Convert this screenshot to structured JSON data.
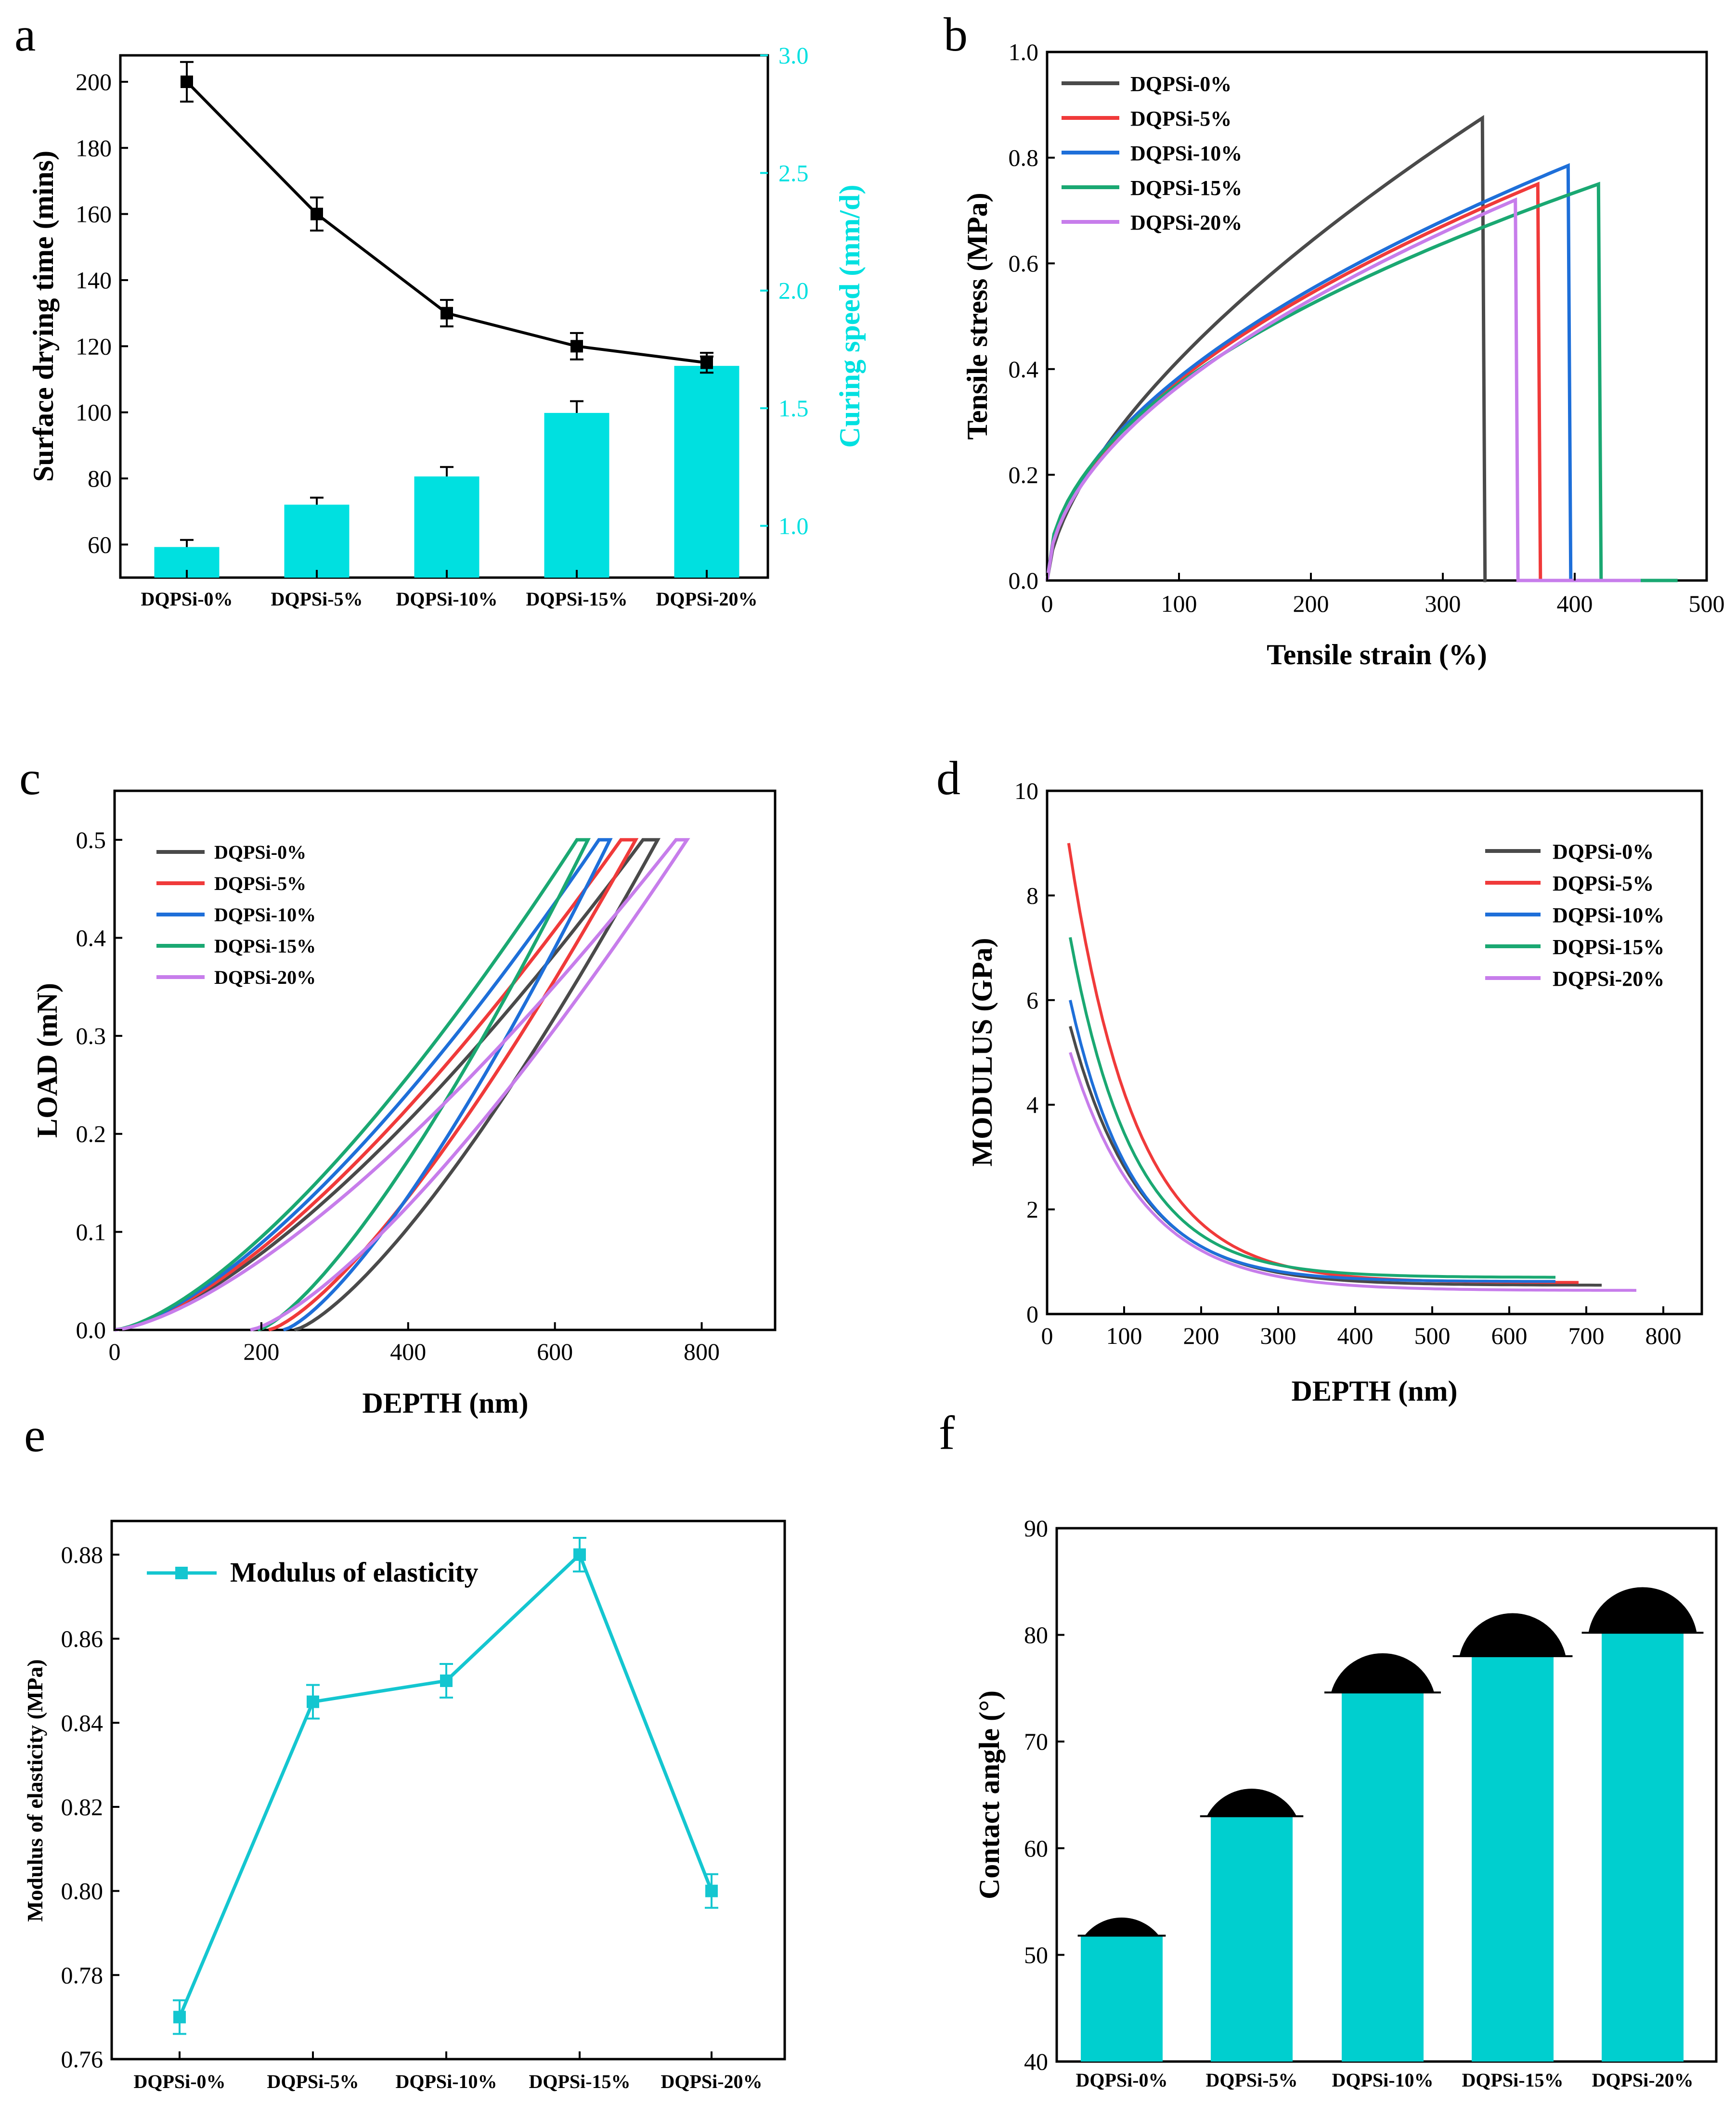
{
  "figure": {
    "colors": {
      "cyan": "#00E0E0",
      "cyan_line": "#14C6D0",
      "cyan_bar_f": "#00CFCF",
      "series": [
        "#4A4A4A",
        "#F03A3A",
        "#1E6FD9",
        "#1AA872",
        "#C77DEB"
      ]
    }
  },
  "chart_data": [
    {
      "panel": "a",
      "type": "bar+line",
      "categories": [
        "DQPSi-0%",
        "DQPSi-5%",
        "DQPSi-10%",
        "DQPSi-15%",
        "DQPSi-20%"
      ],
      "line_series": {
        "name": "Surface drying time (mins)",
        "values": [
          200,
          160,
          130,
          120,
          115
        ],
        "errors": [
          6,
          5,
          4,
          4,
          3
        ]
      },
      "bar_series": {
        "name": "Curing speed (mm/d)",
        "values": [
          0.91,
          1.09,
          1.21,
          1.48,
          1.68
        ],
        "errors": [
          0.03,
          0.03,
          0.04,
          0.05,
          0.04
        ]
      },
      "ylabel": "Surface drying time (mins)",
      "ylabel_right": "Curing speed (mm/d)",
      "ylim": [
        50,
        208
      ],
      "yticks": [
        60,
        80,
        100,
        120,
        140,
        160,
        180,
        200
      ],
      "ylim_right": [
        0.78,
        3.0
      ],
      "yticks_right": [
        "1.0",
        "1.5",
        "2.0",
        "2.5",
        "3.0"
      ]
    },
    {
      "panel": "b",
      "type": "line",
      "xlabel": "Tensile strain (%)",
      "ylabel": "Tensile stress (MPa)",
      "xlim": [
        0,
        500
      ],
      "ylim": [
        0,
        1.0
      ],
      "xticks": [
        "0",
        "100",
        "200",
        "300",
        "400",
        "500"
      ],
      "yticks": [
        "0.0",
        "0.2",
        "0.4",
        "0.6",
        "0.8",
        "1.0"
      ],
      "series": [
        {
          "name": "DQPSi-0%",
          "break_strain": 330,
          "max_stress": 0.875,
          "exp": 0.62,
          "tail_end": 333
        },
        {
          "name": "DQPSi-5%",
          "break_strain": 372,
          "max_stress": 0.75,
          "exp": 0.52,
          "tail_end": 375
        },
        {
          "name": "DQPSi-10%",
          "break_strain": 395,
          "max_stress": 0.785,
          "exp": 0.52,
          "tail_end": 398
        },
        {
          "name": "DQPSi-15%",
          "break_strain": 418,
          "max_stress": 0.75,
          "exp": 0.49,
          "tail_end": 478
        },
        {
          "name": "DQPSi-20%",
          "break_strain": 355,
          "max_stress": 0.72,
          "exp": 0.53,
          "tail_end": 450
        }
      ]
    },
    {
      "panel": "c",
      "type": "line",
      "xlabel": "DEPTH (nm)",
      "ylabel": "LOAD (mN)",
      "xlim": [
        0,
        900
      ],
      "ylim": [
        0,
        0.55
      ],
      "xticks": [
        "0",
        "200",
        "400",
        "600",
        "800"
      ],
      "yticks": [
        "0.0",
        "0.1",
        "0.2",
        "0.3",
        "0.4",
        "0.5"
      ],
      "series": [
        {
          "name": "DQPSi-0%",
          "hmax": 740,
          "hplat": 720,
          "hf": 245,
          "load_max": 0.5
        },
        {
          "name": "DQPSi-5%",
          "hmax": 710,
          "hplat": 690,
          "hf": 210,
          "load_max": 0.5
        },
        {
          "name": "DQPSi-10%",
          "hmax": 675,
          "hplat": 660,
          "hf": 230,
          "load_max": 0.5
        },
        {
          "name": "DQPSi-15%",
          "hmax": 645,
          "hplat": 630,
          "hf": 195,
          "load_max": 0.5
        },
        {
          "name": "DQPSi-20%",
          "hmax": 780,
          "hplat": 765,
          "hf": 185,
          "load_max": 0.5
        }
      ]
    },
    {
      "panel": "d",
      "type": "line",
      "xlabel": "DEPTH (nm)",
      "ylabel": "MODULUS (GPa)",
      "xlim": [
        0,
        850
      ],
      "ylim": [
        0,
        10
      ],
      "xticks": [
        "0",
        "100",
        "200",
        "300",
        "400",
        "500",
        "600",
        "700",
        "800"
      ],
      "yticks": [
        "0",
        "2",
        "4",
        "6",
        "8",
        "10"
      ],
      "series": [
        {
          "name": "DQPSi-0%",
          "start_depth": 30,
          "peak": 5.5,
          "end_depth": 720,
          "end_value": 0.55
        },
        {
          "name": "DQPSi-5%",
          "start_depth": 28,
          "peak": 9.0,
          "end_depth": 690,
          "end_value": 0.6
        },
        {
          "name": "DQPSi-10%",
          "start_depth": 30,
          "peak": 6.0,
          "end_depth": 660,
          "end_value": 0.62
        },
        {
          "name": "DQPSi-15%",
          "start_depth": 30,
          "peak": 7.2,
          "end_depth": 660,
          "end_value": 0.7
        },
        {
          "name": "DQPSi-20%",
          "start_depth": 30,
          "peak": 5.0,
          "end_depth": 765,
          "end_value": 0.45
        }
      ]
    },
    {
      "panel": "e",
      "type": "line",
      "categories": [
        "DQPSi-0%",
        "DQPSi-5%",
        "DQPSi-10%",
        "DQPSi-15%",
        "DQPSi-20%"
      ],
      "series": [
        {
          "name": "Modulus of elasticity",
          "values": [
            0.77,
            0.845,
            0.85,
            0.88,
            0.8
          ],
          "errors": [
            0.004,
            0.004,
            0.004,
            0.004,
            0.004
          ]
        }
      ],
      "ylabel": "Modulus of elasticity (MPa)",
      "ylim": [
        0.76,
        0.888
      ],
      "yticks": [
        "0.76",
        "0.78",
        "0.80",
        "0.82",
        "0.84",
        "0.86",
        "0.88"
      ]
    },
    {
      "panel": "f",
      "type": "bar",
      "categories": [
        "DQPSi-0%",
        "DQPSi-5%",
        "DQPSi-10%",
        "DQPSi-15%",
        "DQPSi-20%"
      ],
      "values": [
        51.8,
        63.0,
        74.6,
        78.0,
        80.2
      ],
      "ylabel": "Contact angle (°)",
      "ylim": [
        40,
        90
      ],
      "yticks": [
        "40",
        "50",
        "60",
        "70",
        "80",
        "90"
      ]
    }
  ]
}
